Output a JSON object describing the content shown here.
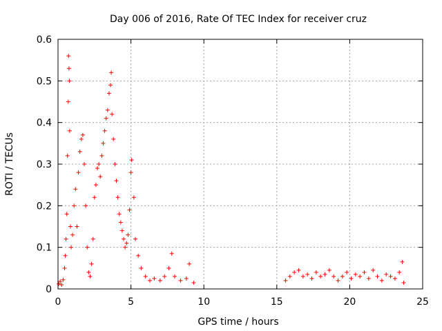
{
  "chart_data": {
    "type": "scatter",
    "title": "Day 006 of 2016, Rate Of TEC Index for receiver cruz",
    "xlabel": "GPS time / hours",
    "ylabel": "ROTI / TECUs",
    "xlim": [
      0,
      25
    ],
    "ylim": [
      0,
      0.6
    ],
    "x_ticks": [
      "0",
      "5",
      "10",
      "15",
      "20",
      "25"
    ],
    "y_ticks": [
      "0",
      "0.1",
      "0.2",
      "0.3",
      "0.4",
      "0.5",
      "0.6"
    ],
    "grid": true,
    "marker": "+",
    "color": "#ff0000",
    "series": [
      {
        "points": [
          [
            0.05,
            0.012
          ],
          [
            0.15,
            0.018
          ],
          [
            0.25,
            0.01
          ],
          [
            0.35,
            0.022
          ],
          [
            0.45,
            0.05
          ],
          [
            0.5,
            0.08
          ],
          [
            0.55,
            0.12
          ],
          [
            0.6,
            0.18
          ],
          [
            0.65,
            0.32
          ],
          [
            0.7,
            0.45
          ],
          [
            0.72,
            0.56
          ],
          [
            0.75,
            0.53
          ],
          [
            0.78,
            0.5
          ],
          [
            0.8,
            0.38
          ],
          [
            0.85,
            0.15
          ],
          [
            0.9,
            0.1
          ],
          [
            1.0,
            0.13
          ],
          [
            1.1,
            0.2
          ],
          [
            1.2,
            0.24
          ],
          [
            1.3,
            0.15
          ],
          [
            1.4,
            0.28
          ],
          [
            1.5,
            0.33
          ],
          [
            1.6,
            0.36
          ],
          [
            1.7,
            0.37
          ],
          [
            1.8,
            0.3
          ],
          [
            1.9,
            0.2
          ],
          [
            2.0,
            0.1
          ],
          [
            2.1,
            0.04
          ],
          [
            2.2,
            0.03
          ],
          [
            2.3,
            0.06
          ],
          [
            2.4,
            0.12
          ],
          [
            2.5,
            0.22
          ],
          [
            2.6,
            0.25
          ],
          [
            2.7,
            0.29
          ],
          [
            2.8,
            0.3
          ],
          [
            2.9,
            0.27
          ],
          [
            3.0,
            0.32
          ],
          [
            3.1,
            0.35
          ],
          [
            3.2,
            0.38
          ],
          [
            3.3,
            0.41
          ],
          [
            3.4,
            0.43
          ],
          [
            3.5,
            0.47
          ],
          [
            3.6,
            0.49
          ],
          [
            3.65,
            0.52
          ],
          [
            3.7,
            0.42
          ],
          [
            3.8,
            0.36
          ],
          [
            3.9,
            0.3
          ],
          [
            4.0,
            0.26
          ],
          [
            4.1,
            0.22
          ],
          [
            4.2,
            0.18
          ],
          [
            4.3,
            0.16
          ],
          [
            4.4,
            0.14
          ],
          [
            4.5,
            0.12
          ],
          [
            4.6,
            0.1
          ],
          [
            4.7,
            0.11
          ],
          [
            4.8,
            0.13
          ],
          [
            4.9,
            0.19
          ],
          [
            5.0,
            0.28
          ],
          [
            5.05,
            0.31
          ],
          [
            5.2,
            0.22
          ],
          [
            5.3,
            0.12
          ],
          [
            5.5,
            0.08
          ],
          [
            5.7,
            0.05
          ],
          [
            6.0,
            0.03
          ],
          [
            6.3,
            0.02
          ],
          [
            6.6,
            0.025
          ],
          [
            7.0,
            0.02
          ],
          [
            7.3,
            0.03
          ],
          [
            7.6,
            0.05
          ],
          [
            7.8,
            0.085
          ],
          [
            8.0,
            0.03
          ],
          [
            8.4,
            0.02
          ],
          [
            8.8,
            0.025
          ],
          [
            9.0,
            0.06
          ],
          [
            9.3,
            0.015
          ],
          [
            15.6,
            0.02
          ],
          [
            15.9,
            0.03
          ],
          [
            16.2,
            0.04
          ],
          [
            16.5,
            0.045
          ],
          [
            16.8,
            0.03
          ],
          [
            17.1,
            0.035
          ],
          [
            17.4,
            0.025
          ],
          [
            17.7,
            0.04
          ],
          [
            18.0,
            0.03
          ],
          [
            18.3,
            0.035
          ],
          [
            18.6,
            0.045
          ],
          [
            18.9,
            0.03
          ],
          [
            19.2,
            0.02
          ],
          [
            19.5,
            0.03
          ],
          [
            19.8,
            0.04
          ],
          [
            20.1,
            0.025
          ],
          [
            20.4,
            0.035
          ],
          [
            20.7,
            0.03
          ],
          [
            21.0,
            0.04
          ],
          [
            21.3,
            0.025
          ],
          [
            21.6,
            0.045
          ],
          [
            21.9,
            0.03
          ],
          [
            22.2,
            0.02
          ],
          [
            22.5,
            0.035
          ],
          [
            22.8,
            0.03
          ],
          [
            23.1,
            0.025
          ],
          [
            23.4,
            0.04
          ],
          [
            23.6,
            0.065
          ],
          [
            23.7,
            0.015
          ]
        ]
      }
    ]
  }
}
